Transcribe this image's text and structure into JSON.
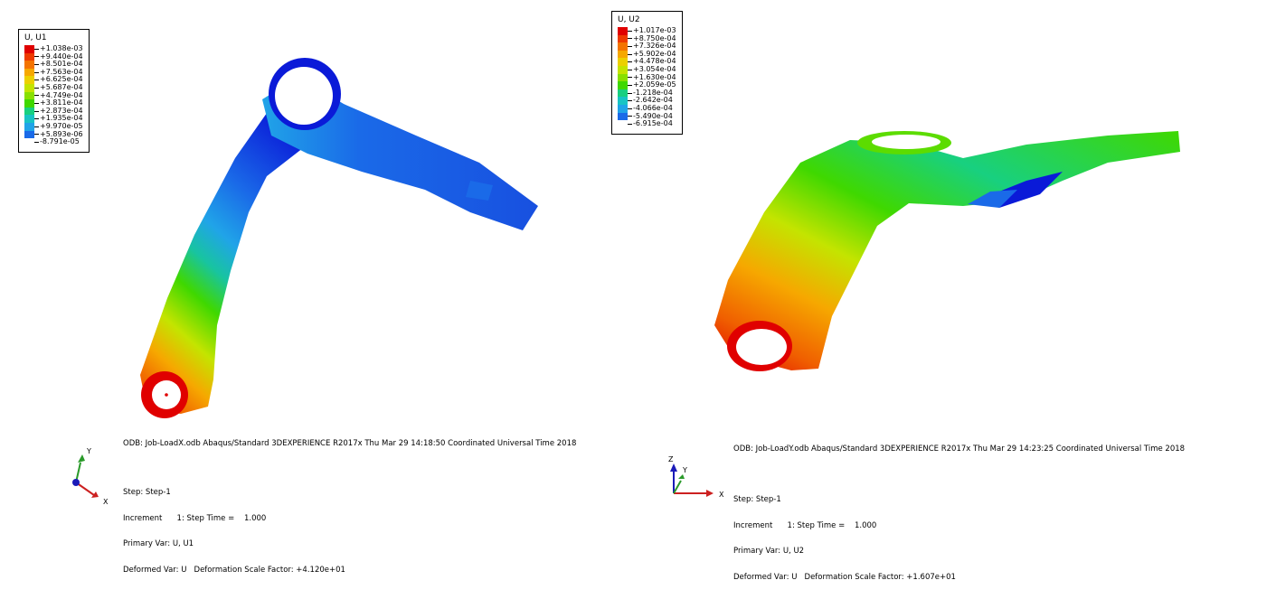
{
  "left": {
    "legend": {
      "title": "U, U1",
      "values": [
        "+1.038e-03",
        "+9.440e-04",
        "+8.501e-04",
        "+7.563e-04",
        "+6.625e-04",
        "+5.687e-04",
        "+4.749e-04",
        "+3.811e-04",
        "+2.873e-04",
        "+1.935e-04",
        "+9.970e-05",
        "+5.893e-06",
        "-8.791e-05"
      ],
      "colors": [
        "#e00000",
        "#ee3a00",
        "#f47400",
        "#f6a800",
        "#ecd000",
        "#c4e400",
        "#88e000",
        "#3fd800",
        "#18d080",
        "#18c4c4",
        "#20a4e8",
        "#1a6ae8",
        "#0a1ad8"
      ]
    },
    "odb_line": "ODB: Job-LoadX.odb    Abaqus/Standard 3DEXPERIENCE R2017x    Thu Mar 29 14:18:50 Coordinated Universal Time 2018",
    "step": "Step: Step-1",
    "increment": "Increment      1: Step Time =    1.000",
    "primary_var": "Primary Var: U, U1",
    "deformed_var": "Deformed Var: U   Deformation Scale Factor: +4.120e+01",
    "triad": {
      "axis_a": "Y",
      "axis_b": "X"
    }
  },
  "right": {
    "legend": {
      "title": "U, U2",
      "values": [
        "+1.017e-03",
        "+8.750e-04",
        "+7.326e-04",
        "+5.902e-04",
        "+4.478e-04",
        "+3.054e-04",
        "+1.630e-04",
        "+2.059e-05",
        "-1.218e-04",
        "-2.642e-04",
        "-4.066e-04",
        "-5.490e-04",
        "-6.915e-04"
      ],
      "colors": [
        "#e00000",
        "#ee3a00",
        "#f47400",
        "#f6a800",
        "#ecd000",
        "#c4e400",
        "#88e000",
        "#3fd800",
        "#18d080",
        "#18c4c4",
        "#20a4e8",
        "#1a6ae8",
        "#0a1ad8"
      ]
    },
    "odb_line": "ODB: Job-LoadY.odb    Abaqus/Standard 3DEXPERIENCE R2017x    Thu Mar 29 14:23:25 Coordinated Universal Time 2018",
    "step": "Step: Step-1",
    "increment": "Increment      1: Step Time =    1.000",
    "primary_var": "Primary Var: U, U2",
    "deformed_var": "Deformed Var: U   Deformation Scale Factor: +1.607e+01",
    "triad": {
      "axis_a": "Z",
      "axis_b": "Y",
      "axis_c": "X"
    }
  }
}
